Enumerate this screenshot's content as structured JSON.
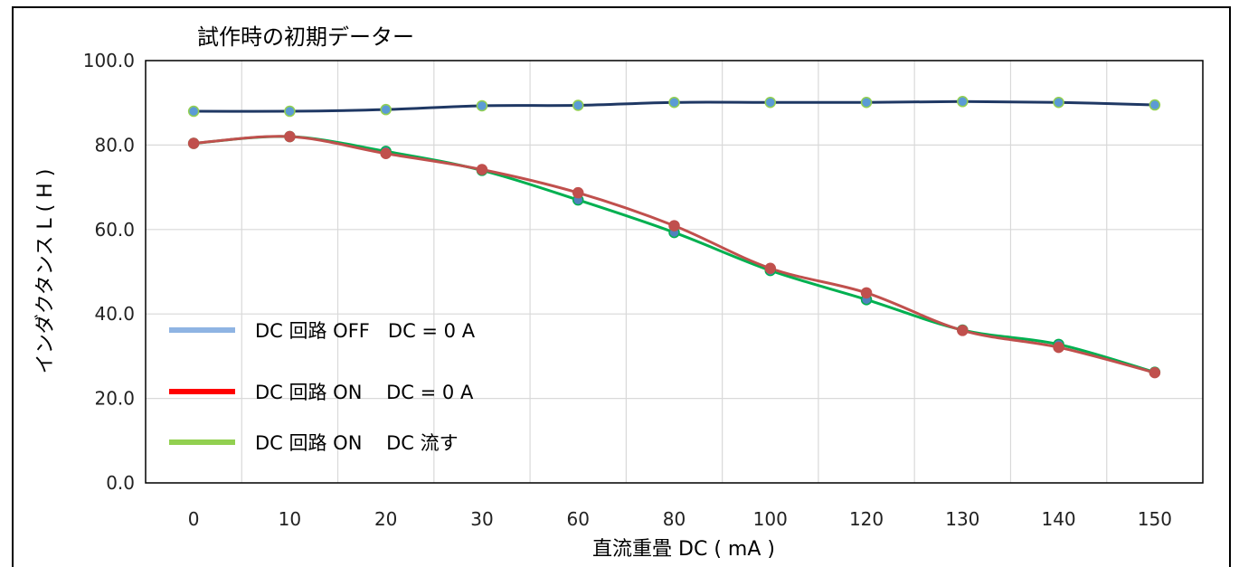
{
  "chart_data": {
    "type": "line",
    "title": "試作時の初期データー",
    "xlabel": "直流重畳  DC ( mA )",
    "ylabel": "インダクタンス  L ( H )",
    "categories": [
      "0",
      "10",
      "20",
      "30",
      "60",
      "80",
      "100",
      "120",
      "130",
      "140",
      "150"
    ],
    "ylim": [
      0,
      100
    ],
    "yticks": [
      "0.0",
      "20.0",
      "40.0",
      "60.0",
      "80.0",
      "100.0"
    ],
    "grid": true,
    "legend_position": "bottom-left",
    "series": [
      {
        "name": "DC 回路 OFF   DC = 0 A",
        "legend_color": "#8fb4e3",
        "line_color": "#1f3864",
        "marker_color": "#5b9bd5",
        "marker_edge": "#92d050",
        "values": [
          88.0,
          88.0,
          88.4,
          89.3,
          89.4,
          90.1,
          90.1,
          90.1,
          90.3,
          90.1,
          89.5
        ]
      },
      {
        "name": "DC 回路 ON    DC = 0 A",
        "legend_color": "#ff0000",
        "line_color": "#c0504d",
        "marker_color": "#c0504d",
        "marker_edge": "#c0504d",
        "values": [
          80.4,
          82.0,
          78.0,
          74.2,
          68.7,
          60.9,
          50.8,
          45.0,
          36.1,
          32.1,
          26.1
        ]
      },
      {
        "name": "DC 回路 ON    DC 流す",
        "legend_color": "#92d050",
        "line_color": "#00b050",
        "marker_color": "#4f81bd",
        "marker_edge": "#00b050",
        "values": [
          80.4,
          82.0,
          78.5,
          74.0,
          67.0,
          59.3,
          50.3,
          43.4,
          36.2,
          32.8,
          26.2
        ]
      }
    ]
  }
}
